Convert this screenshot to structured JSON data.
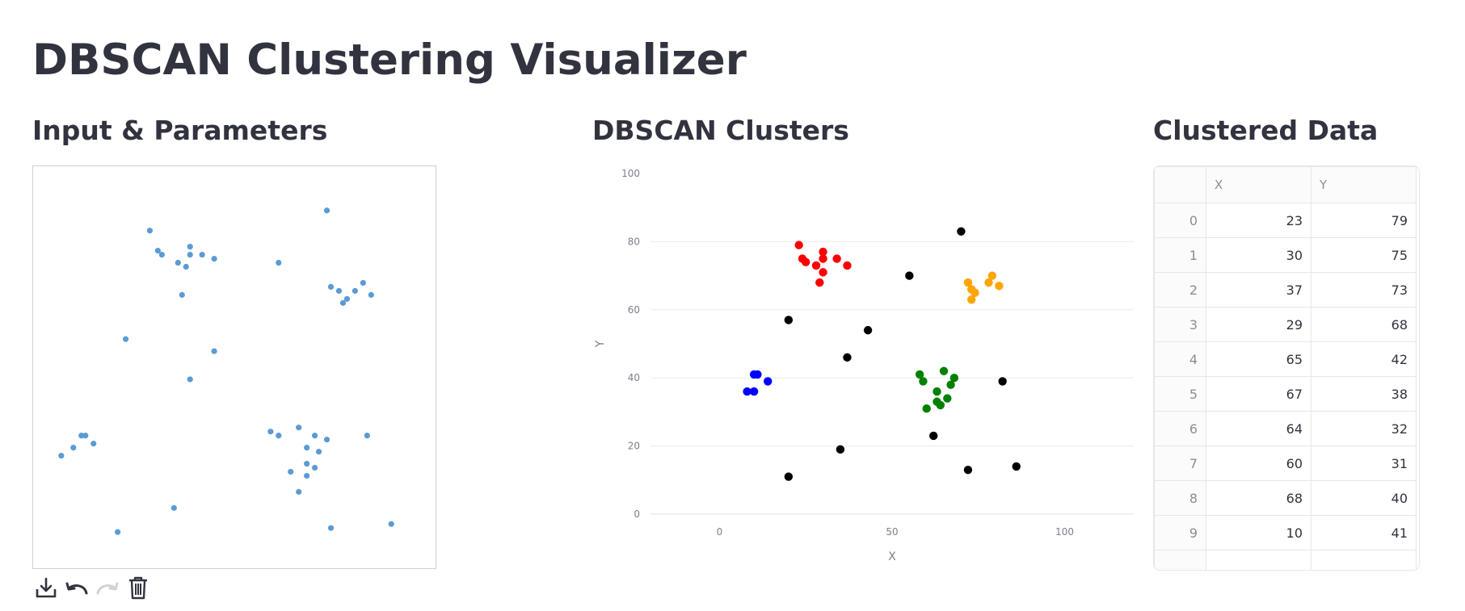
{
  "page_title": "DBSCAN Clustering Visualizer",
  "sections": {
    "input": "Input & Parameters",
    "clusters": "DBSCAN Clusters",
    "table": "Clustered Data"
  },
  "colors": {
    "input_point": "#5b9bd5",
    "noise": "#000000",
    "cluster_red": "#ff0000",
    "cluster_blue": "#0000ff",
    "cluster_green": "#008000",
    "cluster_orange": "#ffa500"
  },
  "toolbar": {
    "icons": [
      "download-icon",
      "undo-icon",
      "redo-icon",
      "trash-icon"
    ]
  },
  "canvas_points": [
    [
      29,
      84
    ],
    [
      31,
      79
    ],
    [
      32,
      78
    ],
    [
      36,
      76
    ],
    [
      38,
      75
    ],
    [
      39,
      80
    ],
    [
      39,
      78
    ],
    [
      37,
      68
    ],
    [
      42,
      78
    ],
    [
      45,
      77
    ],
    [
      23,
      57
    ],
    [
      39,
      47
    ],
    [
      45,
      54
    ],
    [
      61,
      76
    ],
    [
      73,
      89
    ],
    [
      74,
      70
    ],
    [
      76,
      69
    ],
    [
      77,
      66
    ],
    [
      78,
      67
    ],
    [
      82,
      71
    ],
    [
      80,
      69
    ],
    [
      84,
      68
    ],
    [
      12,
      33
    ],
    [
      13,
      33
    ],
    [
      10,
      30
    ],
    [
      15,
      31
    ],
    [
      7,
      28
    ],
    [
      59,
      34
    ],
    [
      61,
      33
    ],
    [
      66,
      35
    ],
    [
      68,
      30
    ],
    [
      70,
      33
    ],
    [
      73,
      32
    ],
    [
      71,
      29
    ],
    [
      68,
      26
    ],
    [
      70,
      25
    ],
    [
      64,
      24
    ],
    [
      68,
      23
    ],
    [
      66,
      19
    ],
    [
      83,
      33
    ],
    [
      35,
      15
    ],
    [
      21,
      9
    ],
    [
      74,
      10
    ],
    [
      89,
      11
    ]
  ],
  "chart_data": {
    "type": "scatter",
    "title": "",
    "xlabel": "X",
    "ylabel": "Y",
    "xlim": [
      -20,
      120
    ],
    "ylim": [
      0,
      100
    ],
    "xticks": [
      0,
      50,
      100
    ],
    "yticks": [
      0,
      20,
      40,
      60,
      80,
      100
    ],
    "grid": true,
    "series": [
      {
        "color": "#ff0000",
        "points": [
          [
            23,
            79
          ],
          [
            24,
            75
          ],
          [
            25,
            74
          ],
          [
            28,
            73
          ],
          [
            30,
            77
          ],
          [
            30,
            75
          ],
          [
            34,
            75
          ],
          [
            37,
            73
          ],
          [
            30,
            71
          ],
          [
            29,
            68
          ]
        ]
      },
      {
        "color": "#0000ff",
        "points": [
          [
            10,
            41
          ],
          [
            11,
            41
          ],
          [
            14,
            39
          ],
          [
            8,
            36
          ],
          [
            10,
            36
          ]
        ]
      },
      {
        "color": "#008000",
        "points": [
          [
            58,
            41
          ],
          [
            59,
            39
          ],
          [
            65,
            42
          ],
          [
            67,
            38
          ],
          [
            68,
            40
          ],
          [
            63,
            36
          ],
          [
            66,
            34
          ],
          [
            63,
            33
          ],
          [
            64,
            32
          ],
          [
            60,
            31
          ]
        ]
      },
      {
        "color": "#ffa500",
        "points": [
          [
            72,
            68
          ],
          [
            73,
            66
          ],
          [
            74,
            65
          ],
          [
            73,
            63
          ],
          [
            78,
            68
          ],
          [
            79,
            70
          ],
          [
            81,
            67
          ]
        ]
      },
      {
        "color": "#000000",
        "points": [
          [
            70,
            83
          ],
          [
            55,
            70
          ],
          [
            20,
            57
          ],
          [
            43,
            54
          ],
          [
            37,
            46
          ],
          [
            82,
            39
          ],
          [
            62,
            23
          ],
          [
            35,
            19
          ],
          [
            20,
            11
          ],
          [
            72,
            13
          ],
          [
            86,
            14
          ]
        ]
      }
    ]
  },
  "table": {
    "columns": [
      "",
      "X",
      "Y"
    ],
    "rows": [
      [
        "0",
        "23",
        "79"
      ],
      [
        "1",
        "30",
        "75"
      ],
      [
        "2",
        "37",
        "73"
      ],
      [
        "3",
        "29",
        "68"
      ],
      [
        "4",
        "65",
        "42"
      ],
      [
        "5",
        "67",
        "38"
      ],
      [
        "6",
        "64",
        "32"
      ],
      [
        "7",
        "60",
        "31"
      ],
      [
        "8",
        "68",
        "40"
      ],
      [
        "9",
        "10",
        "41"
      ]
    ]
  }
}
